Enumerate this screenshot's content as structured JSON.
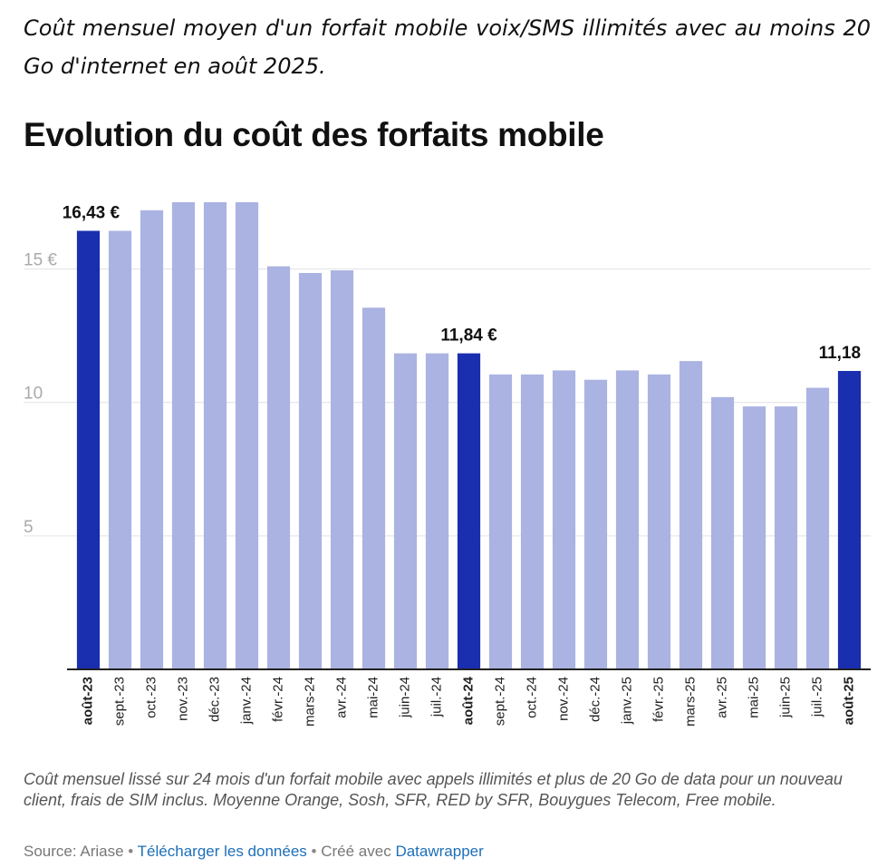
{
  "intro": "Coût mensuel moyen d'un forfait mobile voix/SMS illimités avec au moins 20 Go d'internet en août 2025.",
  "headline": "Evolution du coût des forfaits mobile",
  "notes": "Coût mensuel lissé sur 24 mois d'un forfait mobile avec appels illimités et plus de 20 Go de data pour un nouveau client, frais de SIM inclus. Moyenne Orange, Sosh, SFR, RED by SFR, Bouygues Telecom, Free mobile.",
  "footer": {
    "source": "Source: Ariase",
    "sep": "•",
    "download": "Télécharger les données",
    "created_with": "Créé avec",
    "tool": "Datawrapper"
  },
  "colors": {
    "highlight": "#1a2eb0",
    "normal": "#aab3e2",
    "grid": "#e2e2e2",
    "axis": "#222222",
    "tick_label": "#aaaaaa"
  },
  "chart_data": {
    "type": "bar",
    "categories": [
      "août-23",
      "sept.-23",
      "oct.-23",
      "nov.-23",
      "déc.-23",
      "janv.-24",
      "févr.-24",
      "mars-24",
      "avr.-24",
      "mai-24",
      "juin-24",
      "juil.-24",
      "août-24",
      "sept.-24",
      "oct.-24",
      "nov.-24",
      "déc.-24",
      "janv.-25",
      "févr.-25",
      "mars-25",
      "avr.-25",
      "mai-25",
      "juin-25",
      "juil.-25",
      "août-25"
    ],
    "values": [
      16.43,
      16.43,
      17.2,
      17.5,
      17.5,
      17.5,
      15.1,
      14.85,
      14.95,
      13.55,
      11.84,
      11.84,
      11.84,
      11.05,
      11.05,
      11.2,
      10.85,
      11.2,
      11.05,
      11.55,
      10.2,
      9.85,
      9.85,
      10.55,
      11.18
    ],
    "highlighted": [
      "août-23",
      "août-24",
      "août-25"
    ],
    "data_labels": [
      {
        "category": "août-23",
        "text": "16,43 €"
      },
      {
        "category": "août-24",
        "text": "11,84 €"
      },
      {
        "category": "août-25",
        "text": "11,18"
      }
    ],
    "y_ticks": [
      {
        "value": 15,
        "label": "15 €"
      },
      {
        "value": 10,
        "label": "10"
      },
      {
        "value": 5,
        "label": "5"
      }
    ],
    "ylim": [
      0,
      17.5
    ],
    "grid": true
  }
}
